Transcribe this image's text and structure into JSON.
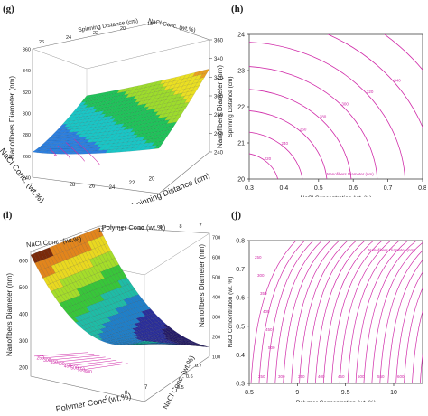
{
  "panels": {
    "g": {
      "tag": "(g)"
    },
    "h": {
      "tag": "(h)"
    },
    "i": {
      "tag": "(i)"
    },
    "j": {
      "tag": "(j)"
    }
  },
  "chart_data": [
    {
      "id": "g",
      "type": "surface",
      "xlabel": "NaCl Conc. (wt.%)",
      "ylabel": "Spinning Distance (cm)",
      "zlabel": "Nanofibers Diameter (nm)",
      "top_axis_title": "Spinning Distance (cm)",
      "top_axis_title_2": "NaCl Conc. (wt.%)",
      "z_ticks": [
        "240",
        "260",
        "280",
        "300",
        "320",
        "340",
        "360"
      ],
      "y_ticks": [
        "28",
        "26",
        "24",
        "22",
        "20"
      ],
      "top_ticks": [
        "26",
        "24",
        "22",
        "20",
        "18"
      ],
      "zlim": [
        240,
        360
      ],
      "colors": [
        "#ffffff",
        "#2b7fe0",
        "#19c6c6",
        "#1fc35a",
        "#9ddc2c",
        "#eadf22",
        "#e8a020",
        "#8a2a08"
      ]
    },
    {
      "id": "h",
      "type": "contour",
      "xlabel": "NaCl Concentration (wt. %)",
      "ylabel": "Spinning Distance (cm)",
      "x_ticks": [
        "0.3",
        "0.4",
        "0.5",
        "0.6",
        "0.7",
        "0.8"
      ],
      "y_ticks": [
        "20",
        "21",
        "22",
        "23",
        "24"
      ],
      "xlim": [
        0.3,
        0.8
      ],
      "ylim": [
        20,
        24
      ],
      "contour_color": "#d02aa8",
      "inline_label": "Nanofibers Diameter (nm)",
      "levels": [
        {
          "r": 0.22,
          "label": "220"
        },
        {
          "r": 0.36,
          "label": "240"
        },
        {
          "r": 0.5,
          "label": "260"
        },
        {
          "r": 0.64,
          "label": "280"
        },
        {
          "r": 0.79,
          "label": "300"
        },
        {
          "r": 0.95,
          "label": "320"
        },
        {
          "r": 1.12,
          "label": "340"
        },
        {
          "r": 1.3,
          "label": "360"
        }
      ]
    },
    {
      "id": "i",
      "type": "surface",
      "xlabel": "Polymer Conc (wt.%)",
      "ylabel": "NaCl Conc. (wt.%)",
      "zlabel": "Nanofibers Diameter (nm)",
      "top_axis_title": "NaCl Conc. (wt.%)",
      "top_axis_title_2": "Polymer Conc (wt.%)",
      "z_ticks_left": [
        "200",
        "300",
        "400",
        "500",
        "600"
      ],
      "z_ticks_right": [
        "100",
        "200",
        "300",
        "400",
        "500",
        "600",
        "700"
      ],
      "x_ticks": [
        "9",
        "8",
        "7"
      ],
      "y_ticks": [
        "0.5",
        "0.6",
        "0.7"
      ],
      "top_ticks": [
        "12",
        "11",
        "10",
        "9",
        "8",
        "7"
      ],
      "floor_labels": [
        "250",
        "300",
        "350",
        "400",
        "450",
        "500",
        "550",
        "600"
      ],
      "zlim": [
        200,
        600
      ],
      "colors": [
        "#241b6a",
        "#2a2e9a",
        "#1f7fc9",
        "#1fbca6",
        "#38c63a",
        "#a5dd2a",
        "#e9d820",
        "#e2851c",
        "#7a2a0a"
      ]
    },
    {
      "id": "j",
      "type": "contour",
      "xlabel": "Polymer Concentration (wt. %)",
      "ylabel": "NaCl Concentration (wt. %)",
      "x_ticks": [
        "8.5",
        "9",
        "9.5",
        "10"
      ],
      "y_ticks": [
        "0.3",
        "0.4",
        "0.5",
        "0.6",
        "0.7",
        "0.8"
      ],
      "xlim": [
        8.5,
        10.3
      ],
      "ylim": [
        0.3,
        0.8
      ],
      "contour_color": "#d02aa8",
      "inline_label": "Nanofibers Diameter (nm)",
      "level_labels": [
        "250",
        "300",
        "350",
        "400",
        "450",
        "500",
        "550",
        "600"
      ],
      "line_count": 26
    }
  ]
}
